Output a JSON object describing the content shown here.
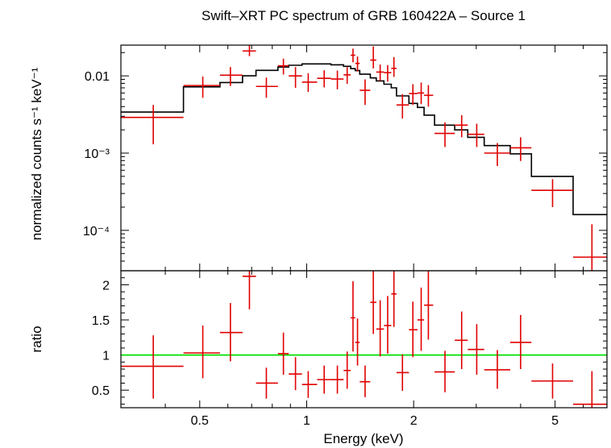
{
  "chart_data": [
    {
      "type": "scatter",
      "title": "Swift–XRT PC spectrum of GRB 160422A – Source 1",
      "xlabel": "Energy (keV)",
      "ylabel": "normalized counts s⁻¹ keV⁻¹",
      "xscale": "log",
      "yscale": "log",
      "xlim": [
        0.3,
        7.0
      ],
      "ylim": [
        3e-05,
        0.025
      ],
      "yticks": [
        {
          "value": 0.01,
          "label": "0.01"
        },
        {
          "value": 0.001,
          "label": "10⁻³"
        },
        {
          "value": 0.0001,
          "label": "10⁻⁴"
        }
      ],
      "data_color": "#e00000",
      "model_color": "#000000",
      "points": [
        {
          "x": 0.37,
          "xlo": 0.3,
          "xhi": 0.45,
          "y": 0.0029,
          "ylo": 0.0013,
          "yhi": 0.0042
        },
        {
          "x": 0.51,
          "xlo": 0.45,
          "xhi": 0.57,
          "y": 0.0075,
          "ylo": 0.0052,
          "yhi": 0.0098
        },
        {
          "x": 0.61,
          "xlo": 0.57,
          "xhi": 0.66,
          "y": 0.0102,
          "ylo": 0.0074,
          "yhi": 0.013
        },
        {
          "x": 0.69,
          "xlo": 0.66,
          "xhi": 0.72,
          "y": 0.021,
          "ylo": 0.018,
          "yhi": 0.025
        },
        {
          "x": 0.77,
          "xlo": 0.72,
          "xhi": 0.83,
          "y": 0.0073,
          "ylo": 0.0052,
          "yhi": 0.0095
        },
        {
          "x": 0.86,
          "xlo": 0.83,
          "xhi": 0.89,
          "y": 0.0135,
          "ylo": 0.0104,
          "yhi": 0.0167
        },
        {
          "x": 0.93,
          "xlo": 0.89,
          "xhi": 0.97,
          "y": 0.01,
          "ylo": 0.007,
          "yhi": 0.013
        },
        {
          "x": 1.01,
          "xlo": 0.97,
          "xhi": 1.07,
          "y": 0.0083,
          "ylo": 0.0062,
          "yhi": 0.0108
        },
        {
          "x": 1.12,
          "xlo": 1.07,
          "xhi": 1.17,
          "y": 0.0093,
          "ylo": 0.0071,
          "yhi": 0.0118
        },
        {
          "x": 1.22,
          "xlo": 1.17,
          "xhi": 1.27,
          "y": 0.0091,
          "ylo": 0.0067,
          "yhi": 0.0117
        },
        {
          "x": 1.3,
          "xlo": 1.27,
          "xhi": 1.33,
          "y": 0.0103,
          "ylo": 0.0079,
          "yhi": 0.013
        },
        {
          "x": 1.35,
          "xlo": 1.33,
          "xhi": 1.37,
          "y": 0.0185,
          "ylo": 0.015,
          "yhi": 0.0225
        },
        {
          "x": 1.39,
          "xlo": 1.37,
          "xhi": 1.41,
          "y": 0.0145,
          "ylo": 0.0114,
          "yhi": 0.0178
        },
        {
          "x": 1.46,
          "xlo": 1.41,
          "xhi": 1.51,
          "y": 0.0065,
          "ylo": 0.0042,
          "yhi": 0.009
        },
        {
          "x": 1.54,
          "xlo": 1.51,
          "xhi": 1.57,
          "y": 0.016,
          "ylo": 0.0125,
          "yhi": 0.024
        },
        {
          "x": 1.61,
          "xlo": 1.57,
          "xhi": 1.65,
          "y": 0.0112,
          "ylo": 0.0086,
          "yhi": 0.014
        },
        {
          "x": 1.69,
          "xlo": 1.65,
          "xhi": 1.73,
          "y": 0.011,
          "ylo": 0.0084,
          "yhi": 0.0138
        },
        {
          "x": 1.76,
          "xlo": 1.73,
          "xhi": 1.79,
          "y": 0.0125,
          "ylo": 0.0097,
          "yhi": 0.0175
        },
        {
          "x": 1.86,
          "xlo": 1.79,
          "xhi": 1.94,
          "y": 0.0042,
          "ylo": 0.0028,
          "yhi": 0.0058
        },
        {
          "x": 1.99,
          "xlo": 1.94,
          "xhi": 2.05,
          "y": 0.0059,
          "ylo": 0.0042,
          "yhi": 0.0078
        },
        {
          "x": 2.1,
          "xlo": 2.05,
          "xhi": 2.14,
          "y": 0.006,
          "ylo": 0.0043,
          "yhi": 0.0082
        },
        {
          "x": 2.2,
          "xlo": 2.14,
          "xhi": 2.27,
          "y": 0.0056,
          "ylo": 0.004,
          "yhi": 0.0076
        },
        {
          "x": 2.45,
          "xlo": 2.29,
          "xhi": 2.61,
          "y": 0.0018,
          "ylo": 0.0012,
          "yhi": 0.0025
        },
        {
          "x": 2.73,
          "xlo": 2.61,
          "xhi": 2.84,
          "y": 0.0023,
          "ylo": 0.0016,
          "yhi": 0.0031
        },
        {
          "x": 3.01,
          "xlo": 2.84,
          "xhi": 3.16,
          "y": 0.00175,
          "ylo": 0.0012,
          "yhi": 0.0024
        },
        {
          "x": 3.44,
          "xlo": 3.16,
          "xhi": 3.74,
          "y": 0.001,
          "ylo": 0.00068,
          "yhi": 0.00135
        },
        {
          "x": 4.0,
          "xlo": 3.74,
          "xhi": 4.29,
          "y": 0.00117,
          "ylo": 0.00079,
          "yhi": 0.0016
        },
        {
          "x": 4.92,
          "xlo": 4.29,
          "xhi": 5.62,
          "y": 0.00033,
          "ylo": 0.0002,
          "yhi": 0.00046
        },
        {
          "x": 6.35,
          "xlo": 5.62,
          "xhi": 7.0,
          "y": 4.5e-05,
          "ylo": 3e-05,
          "yhi": 0.00012
        }
      ],
      "model_steps": [
        {
          "x0": 0.3,
          "x1": 0.45,
          "y": 0.0034
        },
        {
          "x0": 0.45,
          "x1": 0.57,
          "y": 0.0072
        },
        {
          "x0": 0.57,
          "x1": 0.66,
          "y": 0.0082
        },
        {
          "x0": 0.66,
          "x1": 0.72,
          "y": 0.01
        },
        {
          "x0": 0.72,
          "x1": 0.83,
          "y": 0.0118
        },
        {
          "x0": 0.83,
          "x1": 0.89,
          "y": 0.013
        },
        {
          "x0": 0.89,
          "x1": 0.97,
          "y": 0.0137
        },
        {
          "x0": 0.97,
          "x1": 1.07,
          "y": 0.0143
        },
        {
          "x0": 1.07,
          "x1": 1.17,
          "y": 0.0143
        },
        {
          "x0": 1.17,
          "x1": 1.27,
          "y": 0.0139
        },
        {
          "x0": 1.27,
          "x1": 1.33,
          "y": 0.0133
        },
        {
          "x0": 1.33,
          "x1": 1.37,
          "y": 0.0124
        },
        {
          "x0": 1.37,
          "x1": 1.41,
          "y": 0.0117
        },
        {
          "x0": 1.41,
          "x1": 1.51,
          "y": 0.0105
        },
        {
          "x0": 1.51,
          "x1": 1.57,
          "y": 0.0094
        },
        {
          "x0": 1.57,
          "x1": 1.65,
          "y": 0.0086
        },
        {
          "x0": 1.65,
          "x1": 1.73,
          "y": 0.0078
        },
        {
          "x0": 1.73,
          "x1": 1.79,
          "y": 0.007
        },
        {
          "x0": 1.79,
          "x1": 1.94,
          "y": 0.0055
        },
        {
          "x0": 1.94,
          "x1": 2.05,
          "y": 0.0044
        },
        {
          "x0": 2.05,
          "x1": 2.14,
          "y": 0.0039
        },
        {
          "x0": 2.14,
          "x1": 2.29,
          "y": 0.0031
        },
        {
          "x0": 2.29,
          "x1": 2.61,
          "y": 0.0023
        },
        {
          "x0": 2.61,
          "x1": 2.84,
          "y": 0.002
        },
        {
          "x0": 2.84,
          "x1": 3.16,
          "y": 0.0016
        },
        {
          "x0": 3.16,
          "x1": 3.74,
          "y": 0.00125
        },
        {
          "x0": 3.74,
          "x1": 4.29,
          "y": 0.00098
        },
        {
          "x0": 4.29,
          "x1": 5.62,
          "y": 0.0005
        },
        {
          "x0": 5.62,
          "x1": 7.0,
          "y": 0.00016
        }
      ]
    },
    {
      "type": "scatter",
      "xlabel": "Energy (keV)",
      "ylabel": "ratio",
      "xscale": "log",
      "xlim": [
        0.3,
        7.0
      ],
      "ylim": [
        0.25,
        2.2
      ],
      "yticks": [
        {
          "value": 0.5,
          "label": "0.5"
        },
        {
          "value": 1.0,
          "label": "1"
        },
        {
          "value": 1.5,
          "label": "1.5"
        },
        {
          "value": 2.0,
          "label": "2"
        }
      ],
      "xticks": [
        {
          "value": 0.5,
          "label": "0.5"
        },
        {
          "value": 1,
          "label": "1"
        },
        {
          "value": 2,
          "label": "2"
        },
        {
          "value": 5,
          "label": "5"
        }
      ],
      "reference_line": 1.0,
      "reference_color": "#00e000",
      "data_color": "#e00000",
      "points": [
        {
          "x": 0.37,
          "xlo": 0.3,
          "xhi": 0.45,
          "y": 0.84,
          "ylo": 0.38,
          "yhi": 1.28
        },
        {
          "x": 0.51,
          "xlo": 0.45,
          "xhi": 0.57,
          "y": 1.03,
          "ylo": 0.67,
          "yhi": 1.42
        },
        {
          "x": 0.61,
          "xlo": 0.57,
          "xhi": 0.66,
          "y": 1.32,
          "ylo": 0.91,
          "yhi": 1.74
        },
        {
          "x": 0.69,
          "xlo": 0.66,
          "xhi": 0.72,
          "y": 2.12,
          "ylo": 1.65,
          "yhi": 2.2
        },
        {
          "x": 0.77,
          "xlo": 0.72,
          "xhi": 0.83,
          "y": 0.6,
          "ylo": 0.38,
          "yhi": 0.82
        },
        {
          "x": 0.86,
          "xlo": 0.83,
          "xhi": 0.89,
          "y": 1.02,
          "ylo": 0.72,
          "yhi": 1.32
        },
        {
          "x": 0.93,
          "xlo": 0.89,
          "xhi": 0.97,
          "y": 0.73,
          "ylo": 0.5,
          "yhi": 0.97
        },
        {
          "x": 1.01,
          "xlo": 0.97,
          "xhi": 1.07,
          "y": 0.58,
          "ylo": 0.39,
          "yhi": 0.77
        },
        {
          "x": 1.12,
          "xlo": 1.07,
          "xhi": 1.17,
          "y": 0.65,
          "ylo": 0.45,
          "yhi": 0.85
        },
        {
          "x": 1.22,
          "xlo": 1.17,
          "xhi": 1.27,
          "y": 0.65,
          "ylo": 0.45,
          "yhi": 0.85
        },
        {
          "x": 1.3,
          "xlo": 1.27,
          "xhi": 1.33,
          "y": 0.78,
          "ylo": 0.52,
          "yhi": 1.05
        },
        {
          "x": 1.35,
          "xlo": 1.33,
          "xhi": 1.37,
          "y": 1.53,
          "ylo": 1.05,
          "yhi": 2.05
        },
        {
          "x": 1.39,
          "xlo": 1.37,
          "xhi": 1.41,
          "y": 1.18,
          "ylo": 0.85,
          "yhi": 1.52
        },
        {
          "x": 1.46,
          "xlo": 1.41,
          "xhi": 1.51,
          "y": 0.62,
          "ylo": 0.4,
          "yhi": 0.85
        },
        {
          "x": 1.54,
          "xlo": 1.51,
          "xhi": 1.57,
          "y": 1.75,
          "ylo": 1.3,
          "yhi": 2.2
        },
        {
          "x": 1.61,
          "xlo": 1.57,
          "xhi": 1.65,
          "y": 1.37,
          "ylo": 0.98,
          "yhi": 1.78
        },
        {
          "x": 1.69,
          "xlo": 1.65,
          "xhi": 1.73,
          "y": 1.42,
          "ylo": 1.02,
          "yhi": 1.84
        },
        {
          "x": 1.76,
          "xlo": 1.73,
          "xhi": 1.79,
          "y": 1.87,
          "ylo": 1.4,
          "yhi": 2.2
        },
        {
          "x": 1.86,
          "xlo": 1.79,
          "xhi": 1.94,
          "y": 0.75,
          "ylo": 0.49,
          "yhi": 1.01
        },
        {
          "x": 1.99,
          "xlo": 1.94,
          "xhi": 2.05,
          "y": 1.36,
          "ylo": 0.97,
          "yhi": 1.76
        },
        {
          "x": 2.1,
          "xlo": 2.05,
          "xhi": 2.14,
          "y": 1.5,
          "ylo": 1.06,
          "yhi": 1.96
        },
        {
          "x": 2.2,
          "xlo": 2.14,
          "xhi": 2.27,
          "y": 1.71,
          "ylo": 1.22,
          "yhi": 2.2
        },
        {
          "x": 2.45,
          "xlo": 2.29,
          "xhi": 2.61,
          "y": 0.76,
          "ylo": 0.47,
          "yhi": 1.06
        },
        {
          "x": 2.73,
          "xlo": 2.61,
          "xhi": 2.84,
          "y": 1.21,
          "ylo": 0.8,
          "yhi": 1.62
        },
        {
          "x": 3.01,
          "xlo": 2.84,
          "xhi": 3.16,
          "y": 1.08,
          "ylo": 0.72,
          "yhi": 1.44
        },
        {
          "x": 3.44,
          "xlo": 3.16,
          "xhi": 3.74,
          "y": 0.79,
          "ylo": 0.52,
          "yhi": 1.07
        },
        {
          "x": 4.0,
          "xlo": 3.74,
          "xhi": 4.29,
          "y": 1.18,
          "ylo": 0.8,
          "yhi": 1.57
        },
        {
          "x": 4.92,
          "xlo": 4.29,
          "xhi": 5.62,
          "y": 0.63,
          "ylo": 0.38,
          "yhi": 0.88
        },
        {
          "x": 6.35,
          "xlo": 5.62,
          "xhi": 7.0,
          "y": 0.3,
          "ylo": 0.25,
          "yhi": 0.77
        }
      ]
    }
  ]
}
